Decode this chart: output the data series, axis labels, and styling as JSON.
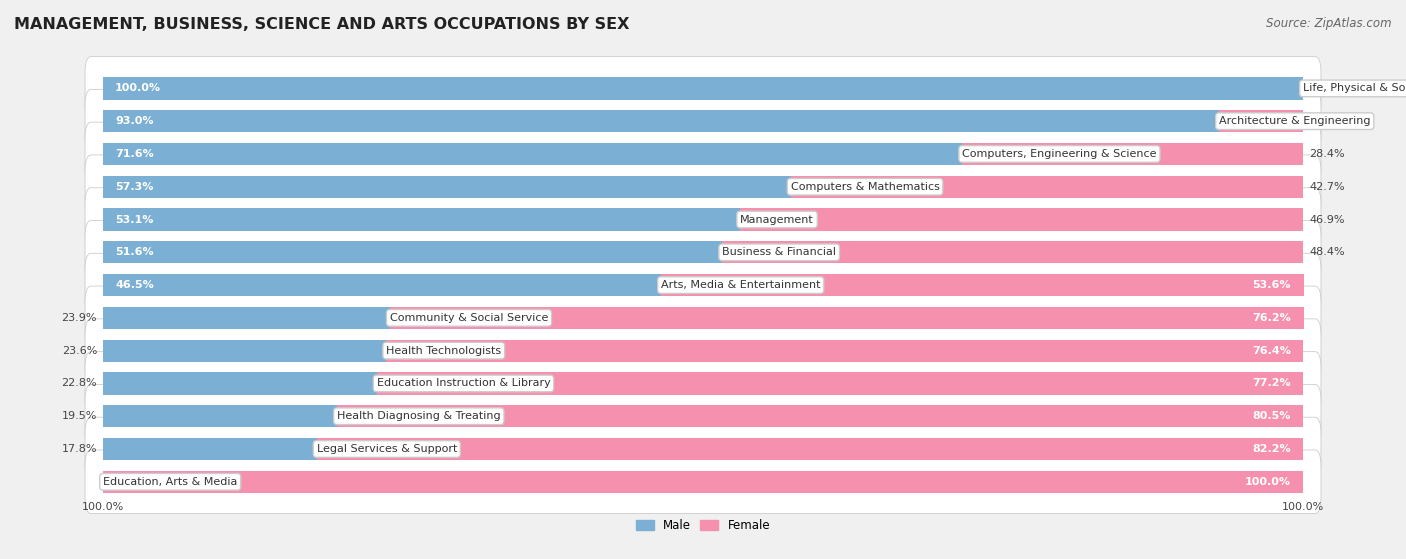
{
  "title": "MANAGEMENT, BUSINESS, SCIENCE AND ARTS OCCUPATIONS BY SEX",
  "source": "Source: ZipAtlas.com",
  "categories": [
    "Life, Physical & Social Science",
    "Architecture & Engineering",
    "Computers, Engineering & Science",
    "Computers & Mathematics",
    "Management",
    "Business & Financial",
    "Arts, Media & Entertainment",
    "Community & Social Service",
    "Health Technologists",
    "Education Instruction & Library",
    "Health Diagnosing & Treating",
    "Legal Services & Support",
    "Education, Arts & Media"
  ],
  "male": [
    100.0,
    93.0,
    71.6,
    57.3,
    53.1,
    51.6,
    46.5,
    23.9,
    23.6,
    22.8,
    19.5,
    17.8,
    0.0
  ],
  "female": [
    0.0,
    7.0,
    28.4,
    42.7,
    46.9,
    48.4,
    53.6,
    76.2,
    76.4,
    77.2,
    80.5,
    82.2,
    100.0
  ],
  "male_color": "#7bafd4",
  "female_color": "#f590ae",
  "bg_color": "#f0f0f0",
  "bar_bg_color": "#ffffff",
  "title_fontsize": 11.5,
  "source_fontsize": 8.5,
  "label_fontsize": 8,
  "value_fontsize": 8,
  "value_fontsize_inside": 8
}
